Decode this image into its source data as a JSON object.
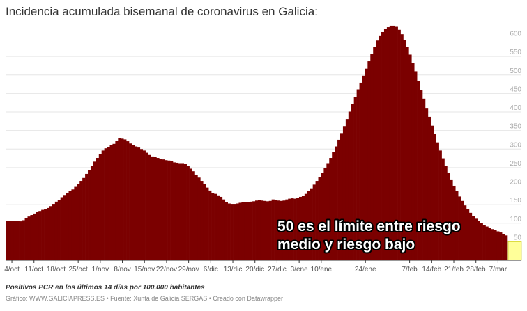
{
  "chart_data": {
    "type": "bar",
    "title": "Incidencia acumulada bisemanal de coronavirus en Galicia:",
    "xlabel": "",
    "ylabel": "",
    "ylim": [
      0,
      640
    ],
    "yticks": [
      50,
      100,
      150,
      200,
      250,
      300,
      350,
      400,
      450,
      500,
      550,
      600
    ],
    "grid": true,
    "x_start": "2020-10-02",
    "x_end": "2021-03-10",
    "xticks": [
      {
        "date": "2020-10-04",
        "label": "4/oct"
      },
      {
        "date": "2020-10-11",
        "label": "11/oct"
      },
      {
        "date": "2020-10-18",
        "label": "18/oct"
      },
      {
        "date": "2020-10-25",
        "label": "25/oct"
      },
      {
        "date": "2020-11-01",
        "label": "1/nov"
      },
      {
        "date": "2020-11-08",
        "label": "8/nov"
      },
      {
        "date": "2020-11-15",
        "label": "15/nov"
      },
      {
        "date": "2020-11-22",
        "label": "22/nov"
      },
      {
        "date": "2020-11-29",
        "label": "29/nov"
      },
      {
        "date": "2020-12-06",
        "label": "6/dic"
      },
      {
        "date": "2020-12-13",
        "label": "13/dic"
      },
      {
        "date": "2020-12-20",
        "label": "20/dic"
      },
      {
        "date": "2020-12-27",
        "label": "27/dic"
      },
      {
        "date": "2021-01-03",
        "label": "3/ene"
      },
      {
        "date": "2021-01-10",
        "label": "10/ene"
      },
      {
        "date": "2021-01-24",
        "label": "24/ene"
      },
      {
        "date": "2021-02-07",
        "label": "7/feb"
      },
      {
        "date": "2021-02-14",
        "label": "14/feb"
      },
      {
        "date": "2021-02-21",
        "label": "21/feb"
      },
      {
        "date": "2021-02-28",
        "label": "28/feb"
      },
      {
        "date": "2021-03-07",
        "label": "7/mar"
      }
    ],
    "values": [
      106,
      106,
      107,
      107,
      107,
      105,
      108,
      114,
      118,
      122,
      126,
      130,
      133,
      136,
      138,
      141,
      146,
      152,
      158,
      163,
      170,
      176,
      181,
      186,
      191,
      198,
      206,
      214,
      222,
      233,
      244,
      255,
      266,
      276,
      287,
      296,
      302,
      306,
      310,
      314,
      322,
      330,
      328,
      326,
      321,
      315,
      310,
      307,
      304,
      300,
      296,
      290,
      284,
      280,
      278,
      276,
      274,
      272,
      270,
      269,
      267,
      264,
      263,
      262,
      262,
      260,
      255,
      247,
      240,
      231,
      223,
      214,
      206,
      196,
      188,
      182,
      179,
      175,
      171,
      164,
      157,
      153,
      152,
      152,
      153,
      155,
      156,
      157,
      157,
      158,
      159,
      161,
      162,
      161,
      160,
      159,
      160,
      164,
      163,
      161,
      160,
      161,
      164,
      166,
      167,
      166,
      169,
      171,
      174,
      179,
      186,
      194,
      204,
      214,
      224,
      236,
      248,
      262,
      276,
      292,
      307,
      325,
      343,
      362,
      381,
      401,
      421,
      441,
      461,
      479,
      498,
      517,
      537,
      556,
      575,
      593,
      605,
      616,
      624,
      629,
      633,
      633,
      630,
      622,
      610,
      594,
      575,
      555,
      533,
      510,
      484,
      460,
      436,
      411,
      387,
      363,
      340,
      318,
      296,
      275,
      255,
      236,
      218,
      201,
      186,
      172,
      160,
      148,
      138,
      128,
      119,
      112,
      106,
      100,
      95,
      91,
      87,
      84,
      81,
      78,
      75,
      71,
      67
    ]
  },
  "annotation": {
    "line1": "50 es el límite entre riesgo",
    "line2": "medio y riesgo bajo"
  },
  "colors": {
    "bars": "#7b0000",
    "highlight": "#ffff99",
    "highlight_border": "#c8c800",
    "gridline": "#e6e6e6",
    "baseline": "#333333"
  },
  "notes": "Positivos PCR en los últimos 14 días por 100.000 habitantes",
  "credit": "Gráfico: WWW.GALICIAPRESS.ES • Fuente: Xunta de Galicia SERGAS • Creado con Datawrapper"
}
